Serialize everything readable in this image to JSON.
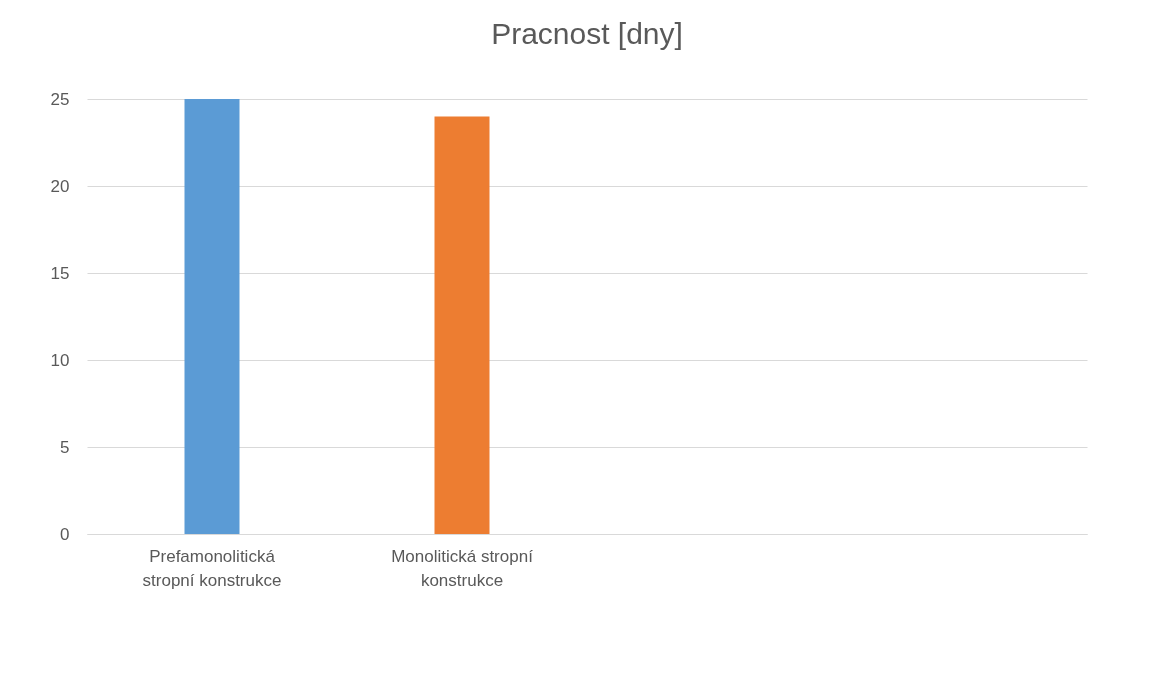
{
  "chart_data": {
    "type": "bar",
    "title": "Pracnost [dny]",
    "categories": [
      "Prefamonolitická stropní konstrukce",
      "Monolitická stropní konstrukce",
      null,
      null
    ],
    "values": [
      25,
      24,
      null,
      null
    ],
    "colors": [
      "#5b9bd5",
      "#ed7d31",
      "#5b9bd5",
      "#ed7d31"
    ],
    "ylim": [
      0,
      25
    ],
    "yticks": [
      0,
      5,
      10,
      15,
      20,
      25
    ],
    "grid": "y"
  }
}
